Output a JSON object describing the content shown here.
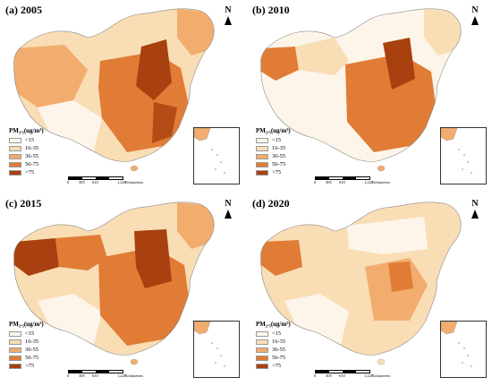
{
  "panels": [
    {
      "title": "(a) 2005",
      "key": "a"
    },
    {
      "title": "(b) 2010",
      "key": "b"
    },
    {
      "title": "(c) 2015",
      "key": "c"
    },
    {
      "title": "(d) 2020",
      "key": "d"
    }
  ],
  "north_label": "N",
  "legend": {
    "title": "PM₂.₅(ug/m³)",
    "classes": [
      {
        "label": "<15",
        "color": "#fdf5ea"
      },
      {
        "label": "16-35",
        "color": "#f9ddb5"
      },
      {
        "label": "36-55",
        "color": "#f2ad6e"
      },
      {
        "label": "56-75",
        "color": "#e07c36"
      },
      {
        "label": ">75",
        "color": "#a8400f"
      }
    ]
  },
  "scale_labels": [
    "0",
    "305",
    "610",
    "1,220"
  ],
  "scale_unit": "Kilometers"
}
